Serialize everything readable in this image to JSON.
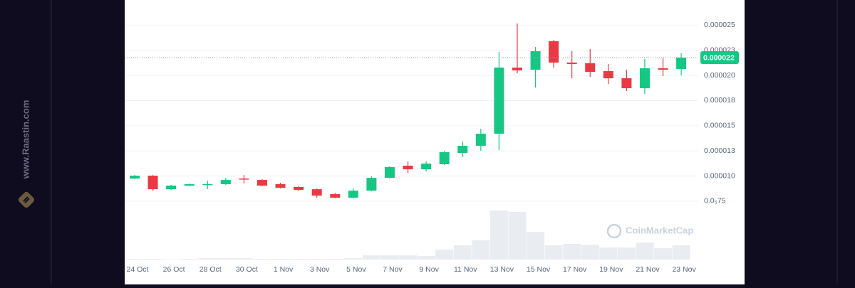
{
  "site": "www.Raastin.com",
  "chart_data": {
    "type": "candlestick",
    "watermark": "CoinMarketCap",
    "categories": [
      "24 Oct",
      null,
      "26 Oct",
      null,
      "28 Oct",
      null,
      "30 Oct",
      null,
      "1 Nov",
      null,
      "3 Nov",
      null,
      "5 Nov",
      null,
      "7 Nov",
      null,
      "9 Nov",
      null,
      "11 Nov",
      null,
      "13 Nov",
      null,
      "15 Nov",
      null,
      "17 Nov",
      null,
      "19 Nov",
      null,
      "21 Nov",
      null,
      "23 Nov"
    ],
    "open": [
      9.75e-06,
      1.004e-05,
      8.69e-06,
      9.05e-06,
      9.12e-06,
      9.19e-06,
      9.75e-06,
      9.61e-06,
      9.19e-06,
      8.91e-06,
      8.69e-06,
      8.2e-06,
      7.85e-06,
      8.55e-06,
      9.82e-06,
      1.103e-05,
      1.067e-05,
      1.117e-05,
      1.23e-05,
      1.301e-05,
      1.421e-05,
      2.078e-05,
      2.057e-05,
      2.34e-05,
      2.128e-05,
      2.121e-05,
      2.043e-05,
      1.972e-05,
      1.873e-05,
      2.071e-05,
      2.064e-05
    ],
    "high": [
      1.01e-05,
      1.01e-05,
      9.12e-06,
      9.26e-06,
      9.54e-06,
      9.82e-06,
      1.01e-05,
      9.68e-06,
      9.33e-06,
      9e-06,
      8.76e-06,
      8.34e-06,
      8.76e-06,
      9.96e-06,
      1.1e-05,
      1.145e-05,
      1.145e-05,
      1.251e-05,
      1.343e-05,
      1.47e-05,
      2.234e-05,
      2.517e-05,
      2.283e-05,
      2.354e-05,
      2.241e-05,
      2.262e-05,
      2.114e-05,
      2.057e-05,
      2.163e-05,
      2.17e-05,
      2.22e-05
    ],
    "low": [
      9.68e-06,
      8.55e-06,
      8.62e-06,
      8.98e-06,
      8.69e-06,
      9.12e-06,
      9.26e-06,
      8.98e-06,
      8.76e-06,
      8.55e-06,
      7.85e-06,
      7.78e-06,
      7.78e-06,
      8.48e-06,
      9.75e-06,
      1.032e-05,
      1.046e-05,
      1.11e-05,
      1.188e-05,
      1.251e-05,
      1.258e-05,
      2.022e-05,
      1.88e-05,
      2.078e-05,
      1.972e-05,
      1.986e-05,
      1.916e-05,
      1.845e-05,
      1.817e-05,
      1.994e-05,
      2.001e-05
    ],
    "close": [
      1.004e-05,
      8.69e-06,
      9.05e-06,
      9.19e-06,
      9.2e-06,
      9.61e-06,
      9.68e-06,
      9.05e-06,
      8.84e-06,
      8.62e-06,
      8.06e-06,
      7.85e-06,
      8.55e-06,
      9.82e-06,
      1.089e-05,
      1.067e-05,
      1.124e-05,
      1.237e-05,
      1.301e-05,
      1.421e-05,
      2.078e-05,
      2.05e-05,
      2.241e-05,
      2.128e-05,
      2.114e-05,
      2.036e-05,
      1.972e-05,
      1.873e-05,
      2.071e-05,
      2.057e-05,
      2.177e-05
    ],
    "volume": [
      1,
      1,
      0.5,
      1,
      2,
      2,
      2,
      1,
      1,
      1,
      1,
      1,
      2,
      6,
      6,
      6,
      5,
      14,
      20,
      27,
      69,
      67,
      39,
      20,
      22,
      21,
      17,
      17,
      24,
      16,
      20
    ],
    "volume_lim": [
      0,
      70
    ],
    "up_color": "#16c784",
    "down_color": "#ea3943",
    "volume_color": "#e9edf1",
    "ylim": [
      7e-06,
      2.75e-05
    ],
    "yticks": [
      {
        "value": 2.5e-05,
        "label": "0.000025"
      },
      {
        "value": 2.25e-05,
        "label": "0.000023"
      },
      {
        "value": 2e-05,
        "label": "0.000020"
      },
      {
        "value": 1.75e-05,
        "label": "0.000018"
      },
      {
        "value": 1.5e-05,
        "label": "0.000015"
      },
      {
        "value": 1.25e-05,
        "label": "0.000013"
      },
      {
        "value": 1e-05,
        "label": "0.000010"
      },
      {
        "value": 7.5e-06,
        "label": "0.0₅75"
      }
    ],
    "grid": true,
    "last_price": {
      "value": 2.177e-05,
      "label": "0.000022"
    }
  }
}
